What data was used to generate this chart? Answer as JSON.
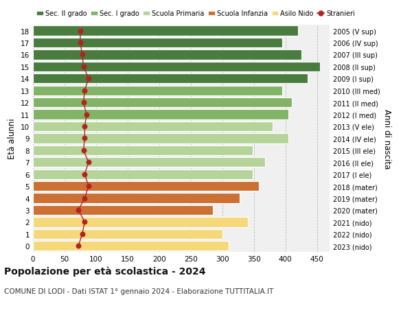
{
  "ages": [
    18,
    17,
    16,
    15,
    14,
    13,
    12,
    11,
    10,
    9,
    8,
    7,
    6,
    5,
    4,
    3,
    2,
    1,
    0
  ],
  "years": [
    "2005 (V sup)",
    "2006 (IV sup)",
    "2007 (III sup)",
    "2008 (II sup)",
    "2009 (I sup)",
    "2010 (III med)",
    "2011 (II med)",
    "2012 (I med)",
    "2013 (V ele)",
    "2014 (IV ele)",
    "2015 (III ele)",
    "2016 (II ele)",
    "2017 (I ele)",
    "2018 (mater)",
    "2019 (mater)",
    "2020 (mater)",
    "2021 (nido)",
    "2022 (nido)",
    "2023 (nido)"
  ],
  "bar_values": [
    420,
    395,
    425,
    455,
    435,
    395,
    410,
    405,
    380,
    405,
    348,
    368,
    348,
    358,
    328,
    285,
    340,
    300,
    310
  ],
  "bar_colors": [
    "#4a7c3f",
    "#4a7c3f",
    "#4a7c3f",
    "#4a7c3f",
    "#4a7c3f",
    "#82b366",
    "#82b366",
    "#82b366",
    "#b5d49a",
    "#b5d49a",
    "#b5d49a",
    "#b5d49a",
    "#b5d49a",
    "#cc7033",
    "#cc7033",
    "#cc7033",
    "#f5d87a",
    "#f5d87a",
    "#f5d87a"
  ],
  "stranieri_values": [
    75,
    75,
    78,
    80,
    88,
    82,
    80,
    85,
    82,
    82,
    80,
    88,
    82,
    88,
    82,
    72,
    82,
    78,
    72
  ],
  "stranieri_color": "#b22222",
  "legend_labels": [
    "Sec. II grado",
    "Sec. I grado",
    "Scuola Primaria",
    "Scuola Infanzia",
    "Asilo Nido",
    "Stranieri"
  ],
  "legend_colors": [
    "#4a7c3f",
    "#82b366",
    "#b5d49a",
    "#cc7033",
    "#f5d87a",
    "#b22222"
  ],
  "ylabel_left": "Età alunni",
  "ylabel_right": "Anni di nascita",
  "title": "Popolazione per età scolastica - 2024",
  "subtitle": "COMUNE DI LODI - Dati ISTAT 1° gennaio 2024 - Elaborazione TUTTITALIA.IT",
  "xlim": [
    0,
    470
  ],
  "xticks": [
    0,
    50,
    100,
    150,
    200,
    250,
    300,
    350,
    400,
    450
  ],
  "background_color": "#ffffff",
  "bar_background": "#f0f0f0"
}
